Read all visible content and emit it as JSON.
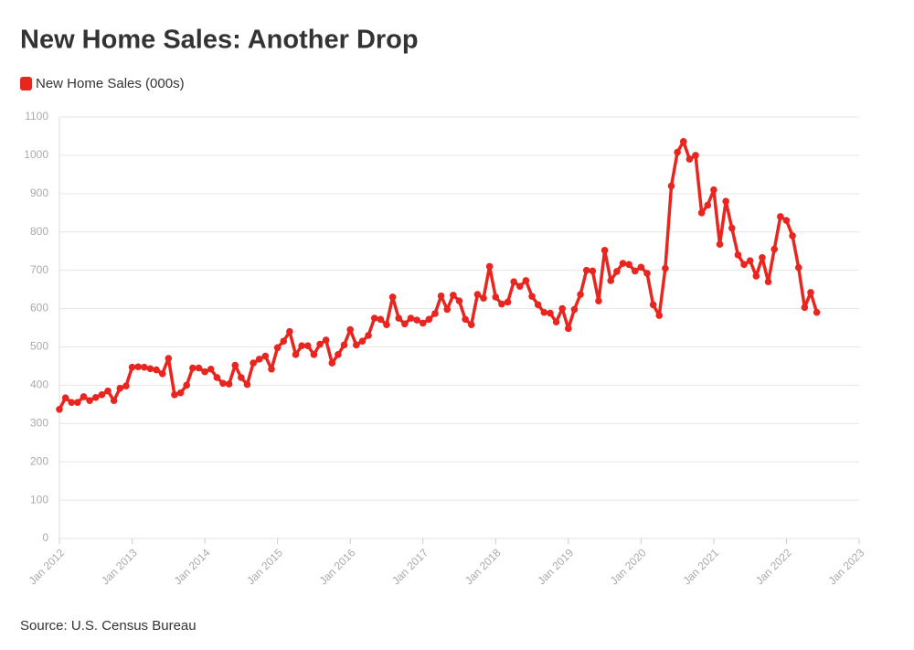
{
  "chart_data": {
    "type": "line",
    "title": "New Home Sales: Another Drop",
    "source": "Source: U.S. Census Bureau",
    "x": [
      "2012-01",
      "2012-02",
      "2012-03",
      "2012-04",
      "2012-05",
      "2012-06",
      "2012-07",
      "2012-08",
      "2012-09",
      "2012-10",
      "2012-11",
      "2012-12",
      "2013-01",
      "2013-02",
      "2013-03",
      "2013-04",
      "2013-05",
      "2013-06",
      "2013-07",
      "2013-08",
      "2013-09",
      "2013-10",
      "2013-11",
      "2013-12",
      "2014-01",
      "2014-02",
      "2014-03",
      "2014-04",
      "2014-05",
      "2014-06",
      "2014-07",
      "2014-08",
      "2014-09",
      "2014-10",
      "2014-11",
      "2014-12",
      "2015-01",
      "2015-02",
      "2015-03",
      "2015-04",
      "2015-05",
      "2015-06",
      "2015-07",
      "2015-08",
      "2015-09",
      "2015-10",
      "2015-11",
      "2015-12",
      "2016-01",
      "2016-02",
      "2016-03",
      "2016-04",
      "2016-05",
      "2016-06",
      "2016-07",
      "2016-08",
      "2016-09",
      "2016-10",
      "2016-11",
      "2016-12",
      "2017-01",
      "2017-02",
      "2017-03",
      "2017-04",
      "2017-05",
      "2017-06",
      "2017-07",
      "2017-08",
      "2017-09",
      "2017-10",
      "2017-11",
      "2017-12",
      "2018-01",
      "2018-02",
      "2018-03",
      "2018-04",
      "2018-05",
      "2018-06",
      "2018-07",
      "2018-08",
      "2018-09",
      "2018-10",
      "2018-11",
      "2018-12",
      "2019-01",
      "2019-02",
      "2019-03",
      "2019-04",
      "2019-05",
      "2019-06",
      "2019-07",
      "2019-08",
      "2019-09",
      "2019-10",
      "2019-11",
      "2019-12",
      "2020-01",
      "2020-02",
      "2020-03",
      "2020-04",
      "2020-05",
      "2020-06",
      "2020-07",
      "2020-08",
      "2020-09",
      "2020-10",
      "2020-11",
      "2020-12",
      "2021-01",
      "2021-02",
      "2021-03",
      "2021-04",
      "2021-05",
      "2021-06",
      "2021-07",
      "2021-08",
      "2021-09",
      "2021-10",
      "2021-11",
      "2021-12",
      "2022-01",
      "2022-02",
      "2022-03",
      "2022-04",
      "2022-05",
      "2022-06"
    ],
    "series": [
      {
        "name": "New Home Sales (000s)",
        "color": "#e8251f",
        "values": [
          337,
          367,
          355,
          355,
          370,
          360,
          368,
          375,
          385,
          360,
          392,
          398,
          447,
          448,
          447,
          443,
          440,
          430,
          470,
          375,
          380,
          400,
          445,
          445,
          435,
          442,
          420,
          405,
          403,
          452,
          420,
          402,
          458,
          468,
          476,
          442,
          498,
          515,
          540,
          480,
          503,
          503,
          480,
          507,
          518,
          458,
          480,
          505,
          545,
          505,
          515,
          530,
          575,
          572,
          558,
          630,
          575,
          560,
          575,
          570,
          562,
          572,
          587,
          633,
          598,
          635,
          620,
          572,
          558,
          637,
          627,
          710,
          630,
          612,
          617,
          670,
          658,
          673,
          632,
          610,
          590,
          588,
          565,
          600,
          548,
          598,
          637,
          700,
          698,
          620,
          752,
          673,
          697,
          718,
          715,
          698,
          708,
          692,
          610,
          582,
          705,
          920,
          1008,
          1036,
          990,
          1000,
          850,
          870,
          910,
          768,
          880,
          810,
          740,
          715,
          725,
          685,
          733,
          670,
          755,
          840,
          830,
          790,
          707,
          603,
          642,
          590
        ]
      }
    ],
    "xlim": [
      "2012-01",
      "2023-01"
    ],
    "xticks": [
      {
        "value": "2012-01",
        "label": "Jan 2012"
      },
      {
        "value": "2013-01",
        "label": "Jan 2013"
      },
      {
        "value": "2014-01",
        "label": "Jan 2014"
      },
      {
        "value": "2015-01",
        "label": "Jan 2015"
      },
      {
        "value": "2016-01",
        "label": "Jan 2016"
      },
      {
        "value": "2017-01",
        "label": "Jan 2017"
      },
      {
        "value": "2018-01",
        "label": "Jan 2018"
      },
      {
        "value": "2019-01",
        "label": "Jan 2019"
      },
      {
        "value": "2020-01",
        "label": "Jan 2020"
      },
      {
        "value": "2021-01",
        "label": "Jan 2021"
      },
      {
        "value": "2022-01",
        "label": "Jan 2022"
      },
      {
        "value": "2023-01",
        "label": "Jan 2023"
      }
    ],
    "ylim": [
      0,
      1100
    ],
    "yticks": [
      0,
      100,
      200,
      300,
      400,
      500,
      600,
      700,
      800,
      900,
      1000,
      1100
    ],
    "grid": true,
    "legend": "top-left"
  }
}
